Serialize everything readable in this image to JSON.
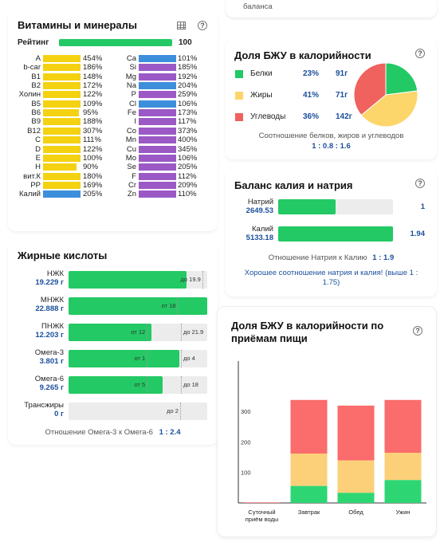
{
  "top_fragment": {
    "text": "баланса"
  },
  "vitamins": {
    "title": "Витамины и минералы",
    "rating": {
      "label": "Рейтинг",
      "value": "100",
      "fraction": 1.0
    },
    "left": [
      {
        "name": "A",
        "value": "454%",
        "fraction": 1.0,
        "color": "#f4d212"
      },
      {
        "name": "b-car",
        "value": "186%",
        "fraction": 1.0,
        "color": "#f4d212"
      },
      {
        "name": "B1",
        "value": "148%",
        "fraction": 1.0,
        "color": "#f4d212"
      },
      {
        "name": "B2",
        "value": "172%",
        "fraction": 1.0,
        "color": "#f4d212"
      },
      {
        "name": "Холин",
        "value": "122%",
        "fraction": 1.0,
        "color": "#f4d212"
      },
      {
        "name": "B5",
        "value": "109%",
        "fraction": 1.0,
        "color": "#f4d212"
      },
      {
        "name": "B6",
        "value": "95%",
        "fraction": 0.95,
        "color": "#f4d212"
      },
      {
        "name": "B9",
        "value": "188%",
        "fraction": 1.0,
        "color": "#f4d212"
      },
      {
        "name": "B12",
        "value": "307%",
        "fraction": 1.0,
        "color": "#f4d212"
      },
      {
        "name": "C",
        "value": "111%",
        "fraction": 1.0,
        "color": "#f4d212"
      },
      {
        "name": "D",
        "value": "122%",
        "fraction": 1.0,
        "color": "#f4d212"
      },
      {
        "name": "E",
        "value": "100%",
        "fraction": 1.0,
        "color": "#f4d212"
      },
      {
        "name": "H",
        "value": "90%",
        "fraction": 0.9,
        "color": "#f4d212"
      },
      {
        "name": "вит.К",
        "value": "180%",
        "fraction": 1.0,
        "color": "#f4d212"
      },
      {
        "name": "PP",
        "value": "169%",
        "fraction": 1.0,
        "color": "#f4d212"
      },
      {
        "name": "Калий",
        "value": "205%",
        "fraction": 1.0,
        "color": "#3d8fdc"
      }
    ],
    "right": [
      {
        "name": "Ca",
        "value": "101%",
        "fraction": 1.0,
        "color": "#3d8fdc"
      },
      {
        "name": "Si",
        "value": "185%",
        "fraction": 1.0,
        "color": "#9b59c6"
      },
      {
        "name": "Mg",
        "value": "192%",
        "fraction": 1.0,
        "color": "#9b59c6"
      },
      {
        "name": "Na",
        "value": "204%",
        "fraction": 1.0,
        "color": "#3d8fdc"
      },
      {
        "name": "P",
        "value": "259%",
        "fraction": 1.0,
        "color": "#9b59c6"
      },
      {
        "name": "Cl",
        "value": "106%",
        "fraction": 1.0,
        "color": "#3d8fdc"
      },
      {
        "name": "Fe",
        "value": "173%",
        "fraction": 1.0,
        "color": "#9b59c6"
      },
      {
        "name": "I",
        "value": "117%",
        "fraction": 1.0,
        "color": "#9b59c6"
      },
      {
        "name": "Co",
        "value": "373%",
        "fraction": 1.0,
        "color": "#9b59c6"
      },
      {
        "name": "Mn",
        "value": "400%",
        "fraction": 1.0,
        "color": "#9b59c6"
      },
      {
        "name": "Cu",
        "value": "345%",
        "fraction": 1.0,
        "color": "#9b59c6"
      },
      {
        "name": "Mo",
        "value": "106%",
        "fraction": 1.0,
        "color": "#9b59c6"
      },
      {
        "name": "Se",
        "value": "205%",
        "fraction": 1.0,
        "color": "#9b59c6"
      },
      {
        "name": "F",
        "value": "112%",
        "fraction": 1.0,
        "color": "#9b59c6"
      },
      {
        "name": "Cr",
        "value": "209%",
        "fraction": 1.0,
        "color": "#9b59c6"
      },
      {
        "name": "Zn",
        "value": "110%",
        "fraction": 1.0,
        "color": "#9b59c6"
      }
    ]
  },
  "fatty": {
    "title": "Жирные кислоты",
    "rows": [
      {
        "name": "НЖК",
        "amount": "19.229 г",
        "fraction": 0.85,
        "tick_label": "до 19.9",
        "tick_pos": 0.97,
        "tick_side": "left"
      },
      {
        "name": "МНЖК",
        "amount": "22.888 г",
        "fraction": 1.0,
        "tick_label": "от 18",
        "tick_pos": 0.79,
        "tick_side": "right"
      },
      {
        "name": "ПНЖК",
        "amount": "12.203 г",
        "fraction": 0.6,
        "tick_label": "от 12",
        "tick_pos": 0.57,
        "tick_side": "right",
        "tick2_label": "до 21.9",
        "tick2_pos": 0.81
      },
      {
        "name": "Омега-3",
        "amount": "3.801 г",
        "fraction": 0.8,
        "tick_label": "от 1",
        "tick_pos": 0.57,
        "tick_side": "right",
        "tick2_label": "до 4",
        "tick2_pos": 0.81
      },
      {
        "name": "Омега-6",
        "amount": "9.265 г",
        "fraction": 0.68,
        "tick_label": "от 5",
        "tick_pos": 0.57,
        "tick_side": "right",
        "tick2_label": "до 18",
        "tick2_pos": 0.81
      },
      {
        "name": "Трансжиры",
        "amount": "0 г",
        "fraction": 0.0,
        "tick_label": "до 2",
        "tick_pos": 0.81,
        "tick_side": "left"
      }
    ],
    "ratio_label": "Отношение Омега-3 к Омега-6",
    "ratio_value": "1 : 2.4"
  },
  "bju": {
    "title": "Доля БЖУ в калорийности",
    "items": [
      {
        "name": "Белки",
        "percent": "23%",
        "grams": "91г",
        "value": 23,
        "color": "#23c964"
      },
      {
        "name": "Жиры",
        "percent": "41%",
        "grams": "71г",
        "value": 41,
        "color": "#fcd66b"
      },
      {
        "name": "Углеводы",
        "percent": "36%",
        "grams": "142г",
        "value": 36,
        "color": "#f0625e"
      }
    ],
    "ratio_label": "Соотношение белков, жиров и углеводов",
    "ratio_value": "1 : 0.8 : 1.6"
  },
  "kna": {
    "title": "Баланс калия и натрия",
    "rows": [
      {
        "name": "Натрий",
        "amount": "2649.53",
        "fraction": 0.5,
        "value": "1"
      },
      {
        "name": "Калий",
        "amount": "5133.18",
        "fraction": 1.0,
        "value": "1.94"
      }
    ],
    "ratio_label": "Отношение Натрия к Калию",
    "ratio_value": "1 : 1.9",
    "note": "Хорошее соотношение натрия и калия! (выше 1 : 1.75)"
  },
  "meals": {
    "title": "Доля БЖУ в калорийности по приёмам пищи",
    "chart_data": {
      "type": "bar",
      "stacked": true,
      "categories": [
        "Суточный приём воды",
        "Завтрак",
        "Обед",
        "Ужин"
      ],
      "series": [
        {
          "color": "#2ed673",
          "values": [
            0,
            120,
            72,
            162
          ]
        },
        {
          "color": "#fcd079",
          "values": [
            0,
            228,
            228,
            192
          ]
        },
        {
          "color": "#fb6c6c",
          "values": [
            4,
            378,
            386,
            372
          ]
        }
      ],
      "yticks": [
        "100",
        "200",
        "300"
      ],
      "ylim": [
        0,
        1000
      ]
    }
  }
}
